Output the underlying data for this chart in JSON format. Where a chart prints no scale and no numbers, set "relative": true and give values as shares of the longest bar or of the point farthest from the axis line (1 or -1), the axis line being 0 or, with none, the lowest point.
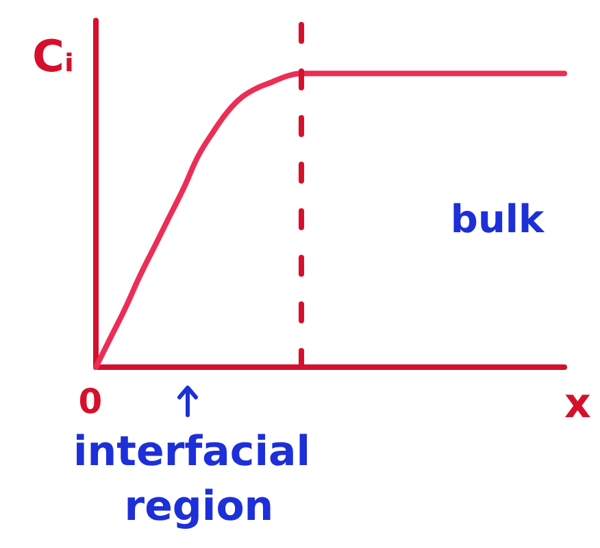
{
  "chart_data": {
    "type": "line",
    "ylabel": "Cᵢ",
    "xlabel": "x",
    "categories": [
      null,
      null,
      null,
      null,
      null,
      null,
      null,
      null,
      null,
      null,
      null,
      null,
      null,
      null,
      null,
      null,
      null,
      null,
      null,
      null,
      null,
      null,
      null,
      null,
      null,
      null,
      null,
      null,
      null,
      null,
      null,
      null,
      null
    ],
    "series": [
      {
        "color": "#ec2d55",
        "values": [
          0,
          0.1,
          0.2,
          0.31,
          0.41,
          0.51,
          0.61,
          0.72,
          0.8,
          0.87,
          0.92,
          0.95,
          0.97,
          0.99,
          1,
          1,
          1,
          1,
          1,
          1,
          1,
          1,
          1,
          1,
          1,
          1,
          1,
          1,
          1,
          1,
          1,
          1,
          1
        ]
      }
    ],
    "relative": true,
    "marker": "none",
    "grid": false,
    "annotations": [
      "bulk",
      "0",
      "interfacial region"
    ]
  }
}
